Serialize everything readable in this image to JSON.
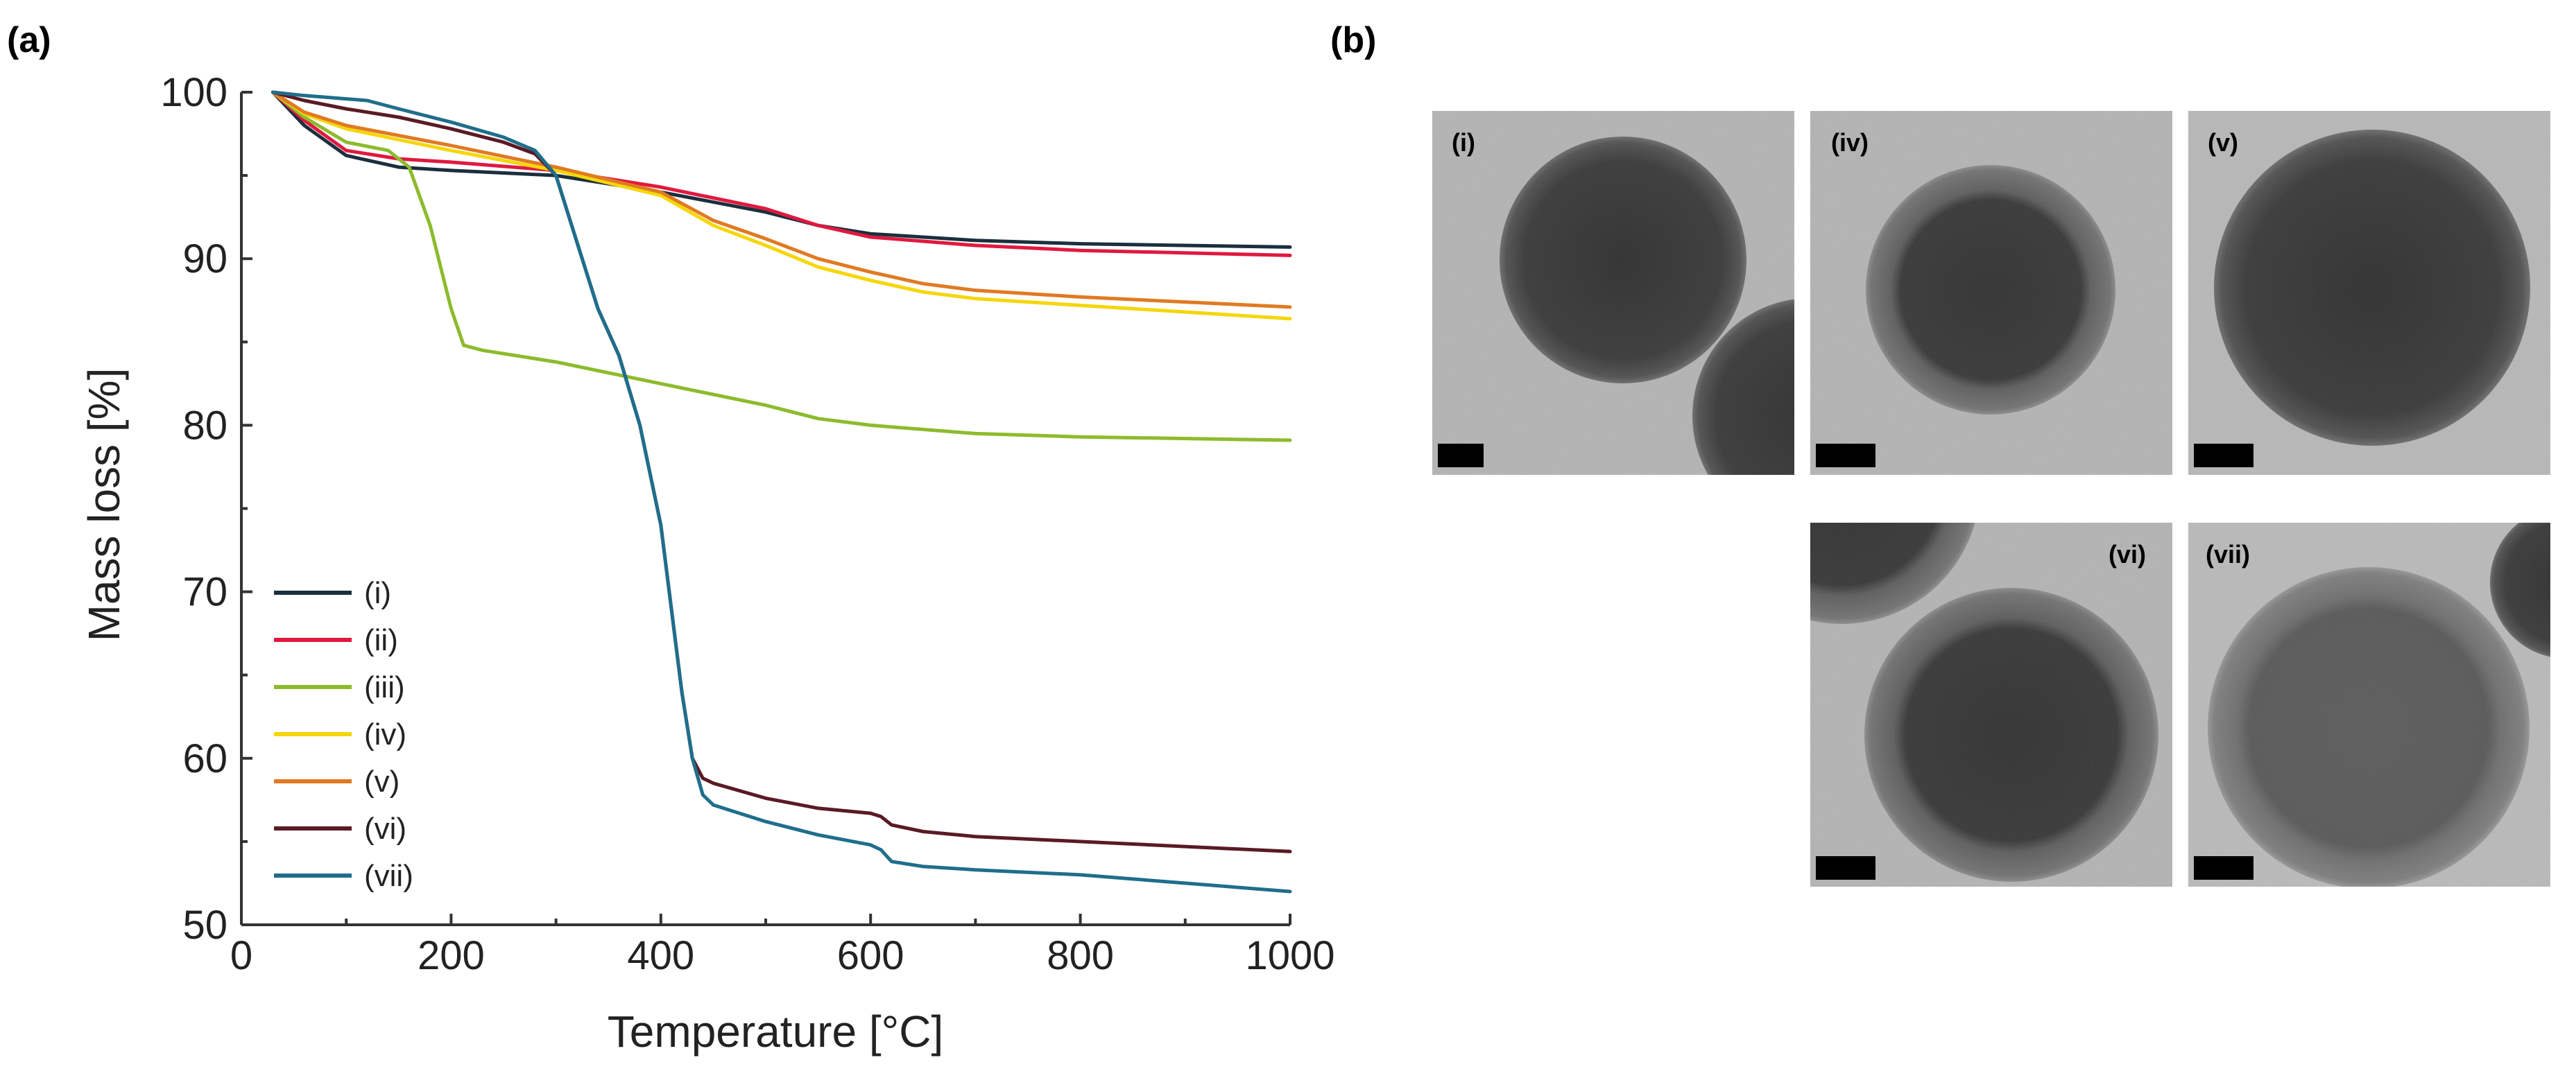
{
  "panel_a_label": "(a)",
  "panel_b_label": "(b)",
  "chart_data": {
    "type": "line",
    "title": "",
    "xlabel": "Temperature [°C]",
    "ylabel": "Mass loss [%]",
    "xlim": [
      0,
      1000
    ],
    "ylim": [
      50,
      100
    ],
    "xticks": [
      0,
      200,
      400,
      600,
      800,
      1000
    ],
    "yticks": [
      50,
      60,
      70,
      80,
      90,
      100
    ],
    "legend_position": "bottom-left",
    "series": [
      {
        "name": "(i)",
        "color": "#1b2f3d",
        "x": [
          30,
          60,
          100,
          150,
          200,
          300,
          400,
          500,
          550,
          600,
          700,
          800,
          1000
        ],
        "y": [
          100,
          98,
          96.2,
          95.5,
          95.3,
          95,
          94,
          92.8,
          92,
          91.5,
          91.1,
          90.9,
          90.7
        ]
      },
      {
        "name": "(ii)",
        "color": "#e0193f",
        "x": [
          30,
          60,
          100,
          150,
          200,
          300,
          400,
          500,
          550,
          600,
          700,
          800,
          1000
        ],
        "y": [
          100,
          98.3,
          96.5,
          96,
          95.8,
          95.3,
          94.3,
          93,
          92,
          91.3,
          90.8,
          90.5,
          90.2
        ]
      },
      {
        "name": "(iii)",
        "color": "#8dbb2d",
        "x": [
          30,
          60,
          100,
          140,
          160,
          180,
          200,
          212,
          230,
          300,
          400,
          500,
          550,
          600,
          700,
          800,
          1000
        ],
        "y": [
          100,
          98.5,
          97,
          96.5,
          95.5,
          92,
          87,
          84.8,
          84.5,
          83.8,
          82.5,
          81.2,
          80.4,
          80,
          79.5,
          79.3,
          79.1
        ]
      },
      {
        "name": "(iv)",
        "color": "#f5d60a",
        "x": [
          30,
          60,
          100,
          200,
          300,
          400,
          450,
          500,
          550,
          600,
          650,
          700,
          800,
          1000
        ],
        "y": [
          100,
          98.7,
          97.8,
          96.5,
          95.3,
          93.8,
          92,
          90.8,
          89.5,
          88.7,
          88,
          87.6,
          87.2,
          86.4
        ]
      },
      {
        "name": "(v)",
        "color": "#e07a22",
        "x": [
          30,
          60,
          100,
          200,
          300,
          400,
          450,
          500,
          550,
          600,
          650,
          700,
          800,
          1000
        ],
        "y": [
          100,
          98.8,
          98,
          96.8,
          95.5,
          94,
          92.3,
          91.2,
          90,
          89.2,
          88.5,
          88.1,
          87.7,
          87.1
        ]
      },
      {
        "name": "(vi)",
        "color": "#5a1a24",
        "x": [
          30,
          60,
          100,
          150,
          200,
          250,
          280,
          300,
          320,
          340,
          360,
          380,
          400,
          410,
          420,
          430,
          440,
          450,
          500,
          550,
          600,
          610,
          620,
          650,
          700,
          800,
          1000
        ],
        "y": [
          100,
          99.5,
          99,
          98.5,
          97.8,
          97,
          96.3,
          95,
          91,
          87,
          84.2,
          80,
          74,
          69,
          64,
          60,
          58.8,
          58.5,
          57.6,
          57,
          56.7,
          56.5,
          56,
          55.6,
          55.3,
          55,
          54.4
        ]
      },
      {
        "name": "(vii)",
        "color": "#1f6e8c",
        "x": [
          30,
          60,
          100,
          120,
          150,
          200,
          250,
          280,
          300,
          320,
          340,
          360,
          380,
          400,
          410,
          420,
          430,
          440,
          450,
          500,
          550,
          600,
          610,
          620,
          650,
          700,
          800,
          1000
        ],
        "y": [
          100,
          99.8,
          99.6,
          99.5,
          99,
          98.2,
          97.3,
          96.5,
          95,
          91,
          87,
          84.2,
          80,
          74,
          69,
          64,
          60,
          57.8,
          57.2,
          56.2,
          55.4,
          54.8,
          54.5,
          53.8,
          53.5,
          53.3,
          53,
          52
        ]
      }
    ]
  },
  "tem_panels": [
    {
      "label": "(i)"
    },
    {
      "label": "(iv)"
    },
    {
      "label": "(v)"
    },
    {
      "label": "(vi)"
    },
    {
      "label": "(vii)"
    }
  ]
}
